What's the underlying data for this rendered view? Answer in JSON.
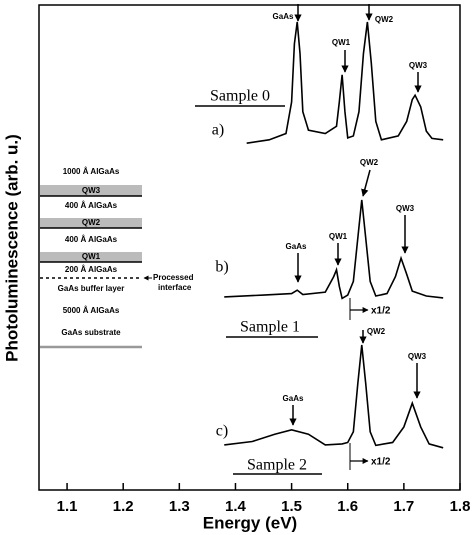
{
  "chart_data": {
    "type": "line",
    "x_label": "Energy (eV)",
    "y_label": "Photoluminescence (arb. u.)",
    "xlim": [
      1.05,
      1.8
    ],
    "xticks": [
      1.1,
      1.2,
      1.3,
      1.4,
      1.5,
      1.6,
      1.7,
      1.8
    ],
    "ylim": [
      0,
      100
    ],
    "series": [
      {
        "name": "Sample 0",
        "panel": "a)",
        "color": "#000000",
        "x": [
          1.42,
          1.46,
          1.49,
          1.5,
          1.505,
          1.51,
          1.515,
          1.52,
          1.53,
          1.56,
          1.58,
          1.585,
          1.59,
          1.595,
          1.6,
          1.61,
          1.62,
          1.628,
          1.635,
          1.642,
          1.65,
          1.66,
          1.69,
          1.705,
          1.715,
          1.72,
          1.73,
          1.74,
          1.75,
          1.77
        ],
        "values": [
          71.5,
          72.2,
          73.5,
          80,
          92,
          96.5,
          90,
          78,
          74.2,
          73.5,
          75,
          80,
          85.6,
          78,
          72.6,
          73,
          78,
          90,
          96.5,
          88,
          76,
          72.2,
          73,
          76,
          80.5,
          81.4,
          79,
          74,
          72.5,
          72.2
        ],
        "peak_labels": [
          "GaAs",
          "QW1",
          "QW2",
          "QW3"
        ]
      },
      {
        "name": "Sample 1",
        "panel": "b)",
        "color": "#000000",
        "scale_note": "x1/2",
        "x": [
          1.38,
          1.45,
          1.5,
          1.51,
          1.52,
          1.56,
          1.575,
          1.58,
          1.585,
          1.59,
          1.6,
          1.61,
          1.618,
          1.625,
          1.632,
          1.64,
          1.65,
          1.67,
          1.685,
          1.695,
          1.705,
          1.715,
          1.74,
          1.77
        ],
        "values": [
          39.8,
          40.2,
          40.5,
          41.2,
          40.3,
          40.8,
          44,
          45.4,
          42,
          39.5,
          40.2,
          43,
          52,
          59.8,
          52,
          43,
          40,
          40.5,
          44,
          47.8,
          44.5,
          41,
          40,
          39.6
        ],
        "peak_labels": [
          "GaAs",
          "QW1",
          "QW2",
          "QW3"
        ]
      },
      {
        "name": "Sample 2",
        "panel": "c)",
        "color": "#000000",
        "scale_note": "x1/2",
        "x": [
          1.38,
          1.43,
          1.47,
          1.5,
          1.53,
          1.56,
          1.59,
          1.6,
          1.61,
          1.618,
          1.625,
          1.632,
          1.64,
          1.65,
          1.68,
          1.7,
          1.715,
          1.73,
          1.745,
          1.77
        ],
        "values": [
          9.3,
          10,
          11.5,
          12.4,
          11.5,
          9.3,
          9.5,
          9.8,
          12,
          22,
          29.9,
          22,
          12,
          9.2,
          9.8,
          13,
          17.9,
          13,
          9.5,
          8.7
        ],
        "peak_labels": [
          "GaAs",
          "QW2",
          "QW3"
        ]
      }
    ],
    "inset_layers": [
      "1000 Å AlGaAs",
      "QW3",
      "400 Å AlGaAs",
      "QW2",
      "400 Å AlGaAs",
      "QW1",
      "200 Å AlGaAs",
      "GaAs buffer layer",
      "5000 Å AlGaAs",
      "GaAs substrate"
    ],
    "processed_interface": "Processed interface"
  }
}
